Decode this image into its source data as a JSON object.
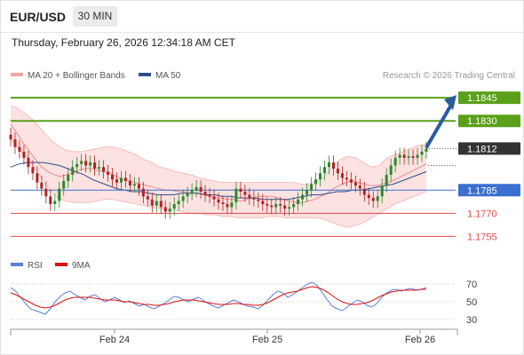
{
  "header": {
    "symbol": "EUR/USD",
    "timeframe": "30 MIN",
    "datetime": "Thursday, February 26, 2026 12:34:18 AM CET"
  },
  "legend": {
    "ma20": {
      "label": "MA 20 + Bollinger Bands",
      "color": "#f08080"
    },
    "ma50": {
      "label": "MA 50",
      "color": "#2c4f8c"
    },
    "copyright": "Research © 2026 Trading Central"
  },
  "rsi_legend": {
    "rsi": {
      "label": "RSI",
      "color": "#5b7fd6"
    },
    "ma": {
      "label": "9MA",
      "color": "#dd1111"
    }
  },
  "colors": {
    "resistance": "#5aa018",
    "pivot": "#3b6fd0",
    "support": "#e04a4a",
    "last_price": "#333333",
    "arrow": "#2a5aa0",
    "candle_up": "#2a8a2a",
    "candle_down": "#b22222"
  },
  "chart_data": {
    "type": "candlestick",
    "x_ticks": [
      "Feb 24",
      "Feb 25",
      "Feb 26"
    ],
    "levels": [
      {
        "value": 1.1845,
        "label": "1.1845",
        "kind": "resistance"
      },
      {
        "value": 1.183,
        "label": "1.1830",
        "kind": "resistance"
      },
      {
        "value": 1.1812,
        "label": "1.1812",
        "kind": "last"
      },
      {
        "value": 1.1785,
        "label": "1.1785",
        "kind": "pivot"
      },
      {
        "value": 1.177,
        "label": "1.1770",
        "kind": "support"
      },
      {
        "value": 1.1755,
        "label": "1.1755",
        "kind": "support"
      }
    ],
    "price_ylim": [
      1.1746,
      1.1852
    ],
    "closes": [
      1.1818,
      1.1813,
      1.181,
      1.1806,
      1.18,
      1.1796,
      1.179,
      1.1786,
      1.1781,
      1.1776,
      1.1778,
      1.1786,
      1.1791,
      1.1795,
      1.18,
      1.1802,
      1.1804,
      1.1801,
      1.1803,
      1.1799,
      1.18,
      1.1797,
      1.1795,
      1.1792,
      1.179,
      1.1793,
      1.1791,
      1.1788,
      1.1789,
      1.1786,
      1.1781,
      1.1779,
      1.1775,
      1.1778,
      1.1774,
      1.1771,
      1.1773,
      1.1776,
      1.1778,
      1.1781,
      1.1783,
      1.1785,
      1.1787,
      1.1784,
      1.1782,
      1.1781,
      1.1779,
      1.1777,
      1.1776,
      1.1774,
      1.1777,
      1.1786,
      1.1784,
      1.1782,
      1.178,
      1.1779,
      1.1778,
      1.1776,
      1.1775,
      1.1774,
      1.1776,
      1.1775,
      1.1773,
      1.1774,
      1.1776,
      1.1779,
      1.1782,
      1.1785,
      1.1789,
      1.1792,
      1.1796,
      1.18,
      1.1803,
      1.1799,
      1.1796,
      1.1793,
      1.1792,
      1.179,
      1.1788,
      1.1786,
      1.1782,
      1.178,
      1.1778,
      1.1781,
      1.1788,
      1.1795,
      1.1801,
      1.1806,
      1.1808,
      1.1806,
      1.1807,
      1.1806,
      1.1808,
      1.181,
      1.1812
    ],
    "ma20": [
      1.1828,
      1.1822,
      1.1816,
      1.181,
      1.1805,
      1.18,
      1.1797,
      1.1795,
      1.1794,
      1.1795,
      1.1796,
      1.1798,
      1.1799,
      1.1799,
      1.1798,
      1.1797,
      1.1796,
      1.1794,
      1.1792,
      1.1791,
      1.179,
      1.1789,
      1.1788,
      1.1787,
      1.1786,
      1.1785,
      1.1785,
      1.1784,
      1.1784,
      1.1783,
      1.1783,
      1.1782,
      1.1781,
      1.178,
      1.178,
      1.1779,
      1.1779,
      1.1778,
      1.1779,
      1.178,
      1.1781,
      1.1781,
      1.1781,
      1.178,
      1.1779,
      1.1778,
      1.1777,
      1.1777,
      1.1778,
      1.1779,
      1.1781,
      1.1783,
      1.1786,
      1.1788,
      1.179,
      1.1791,
      1.179,
      1.1789,
      1.1788,
      1.1788,
      1.1789,
      1.179,
      1.1792,
      1.1794,
      1.1796,
      1.1798,
      1.18,
      1.1802
    ],
    "ma50": [
      1.18,
      1.1802,
      1.1803,
      1.1803,
      1.1803,
      1.1802,
      1.1801,
      1.1799,
      1.1797,
      1.1795,
      1.1792,
      1.179,
      1.1788,
      1.1786,
      1.1785,
      1.1784,
      1.1784,
      1.1783,
      1.1782,
      1.1782,
      1.1782,
      1.1783,
      1.1783,
      1.1783,
      1.1782,
      1.1782,
      1.1781,
      1.1781,
      1.178,
      1.178,
      1.178,
      1.1779,
      1.1779,
      1.1779,
      1.1779,
      1.178,
      1.1781,
      1.1782,
      1.1782,
      1.1783,
      1.1784,
      1.1784,
      1.1785,
      1.1785,
      1.1786,
      1.1787,
      1.1788,
      1.1789,
      1.1791,
      1.1793,
      1.1795,
      1.1797
    ],
    "bb_upper": [
      1.184,
      1.1838,
      1.1834,
      1.183,
      1.1824,
      1.1818,
      1.1814,
      1.1811,
      1.181,
      1.181,
      1.1811,
      1.1812,
      1.1813,
      1.1813,
      1.1812,
      1.181,
      1.1808,
      1.1805,
      1.1803,
      1.18,
      1.1799,
      1.1797,
      1.1796,
      1.1795,
      1.1793,
      1.1792,
      1.1791,
      1.179,
      1.179,
      1.179,
      1.179,
      1.179,
      1.179,
      1.179,
      1.179,
      1.179,
      1.179,
      1.1789,
      1.1789,
      1.1791,
      1.1794,
      1.18,
      1.1805,
      1.1807,
      1.1806,
      1.1803,
      1.18,
      1.1801,
      1.1806,
      1.1808,
      1.181,
      1.1812,
      1.1814,
      1.1815
    ],
    "bb_lower": [
      1.1818,
      1.1812,
      1.1806,
      1.18,
      1.1792,
      1.1785,
      1.178,
      1.1778,
      1.1777,
      1.1777,
      1.1777,
      1.1778,
      1.1779,
      1.1779,
      1.1778,
      1.1777,
      1.1776,
      1.1775,
      1.1774,
      1.1773,
      1.1772,
      1.1772,
      1.1771,
      1.177,
      1.177,
      1.1769,
      1.1769,
      1.1768,
      1.1768,
      1.1767,
      1.1767,
      1.1767,
      1.1767,
      1.1768,
      1.1768,
      1.1767,
      1.1767,
      1.1767,
      1.1767,
      1.1767,
      1.1766,
      1.1764,
      1.1762,
      1.1761,
      1.1762,
      1.1764,
      1.1767,
      1.177,
      1.1773,
      1.1776,
      1.1778,
      1.178,
      1.1782,
      1.1784
    ],
    "arrow_target": 1.1845,
    "rsi": {
      "ticks": [
        70,
        50,
        30
      ],
      "ylim": [
        20,
        78
      ],
      "rsi_values": [
        66,
        62,
        55,
        48,
        42,
        40,
        38,
        36,
        42,
        50,
        56,
        60,
        62,
        58,
        55,
        52,
        56,
        58,
        54,
        50,
        52,
        55,
        52,
        49,
        51,
        48,
        45,
        47,
        44,
        42,
        45,
        48,
        52,
        56,
        55,
        52,
        50,
        53,
        55,
        51,
        48,
        45,
        43,
        46,
        49,
        52,
        50,
        47,
        45,
        44,
        42,
        46,
        52,
        58,
        62,
        60,
        55,
        58,
        62,
        66,
        70,
        72,
        68,
        60,
        52,
        45,
        42,
        40,
        44,
        48,
        52,
        50,
        46,
        44,
        48,
        55,
        60,
        63,
        64,
        62,
        64,
        65,
        63,
        64,
        66
      ],
      "ma_values": [
        60,
        58,
        55,
        52,
        49,
        46,
        44,
        43,
        44,
        46,
        49,
        52,
        54,
        55,
        55,
        55,
        55,
        54,
        53,
        52,
        52,
        52,
        51,
        50,
        50,
        49,
        48,
        47,
        47,
        46,
        46,
        47,
        48,
        50,
        51,
        52,
        52,
        52,
        51,
        50,
        49,
        48,
        47,
        47,
        47,
        48,
        48,
        47,
        47,
        46,
        46,
        47,
        49,
        52,
        55,
        58,
        60,
        61,
        62,
        64,
        66,
        67,
        66,
        64,
        61,
        57,
        53,
        50,
        48,
        47,
        47,
        48,
        49,
        51,
        54,
        57,
        59,
        61,
        62,
        63,
        63,
        63,
        63,
        64,
        64
      ]
    }
  }
}
